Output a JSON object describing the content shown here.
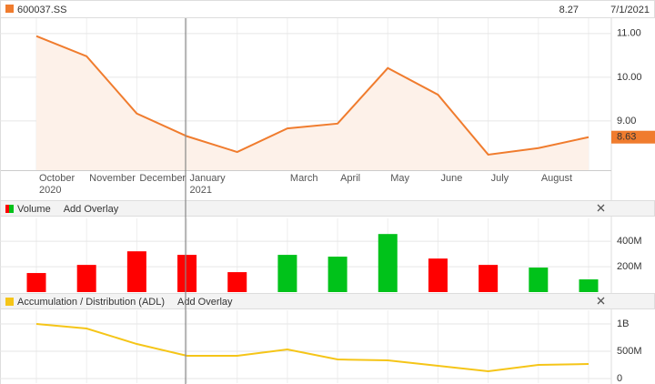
{
  "header": {
    "symbol": "600037.SS",
    "price": 8.27,
    "date": "7/1/2021"
  },
  "chart_data": [
    {
      "type": "area",
      "color": "#f07c2e",
      "fill": "#fdf1e9",
      "categories": [
        "October 2020",
        "November",
        "December",
        "January 2021",
        null,
        "March",
        "April",
        "May",
        "June",
        "July",
        "August",
        null
      ],
      "values": [
        10.94,
        10.48,
        9.17,
        8.65,
        8.29,
        8.83,
        8.94,
        10.21,
        9.6,
        8.23,
        8.38,
        8.63
      ],
      "value_labels": [
        null,
        null,
        null,
        null,
        null,
        null,
        null,
        null,
        null,
        null,
        null,
        "8.63"
      ],
      "ylim": [
        7.875,
        11.35
      ],
      "yticks": [
        {
          "value": 9,
          "label": "9.00"
        },
        {
          "value": 10,
          "label": "10.00"
        },
        {
          "value": 11,
          "label": "11.00"
        }
      ],
      "grid": true
    },
    {
      "type": "bar",
      "title": "Volume",
      "overlay": "Add Overlay",
      "values": [
        150000000,
        214000000,
        321000000,
        293000000,
        157000000,
        293000000,
        279000000,
        457000000,
        264000000,
        214000000,
        193000000,
        100000000
      ],
      "colors": [
        "#ff0000",
        "#ff0000",
        "#ff0000",
        "#ff0000",
        "#ff0000",
        "#00c21a",
        "#00c21a",
        "#00c21a",
        "#ff0000",
        "#ff0000",
        "#00c21a",
        "#00c21a"
      ],
      "ylim": [
        0,
        580000000
      ],
      "yticks": [
        {
          "value": 200000000,
          "label": "200M"
        },
        {
          "value": 400000000,
          "label": "400M"
        }
      ],
      "grid": true
    },
    {
      "type": "line",
      "title": "Accumulation / Distribution (ADL)",
      "overlay": "Add Overlay",
      "color": "#f5c518",
      "values": [
        1000000000,
        917000000,
        633000000,
        417000000,
        417000000,
        533000000,
        350000000,
        333000000,
        233000000,
        133000000,
        250000000,
        267000000
      ],
      "ylim": [
        -83000000,
        1250000000
      ],
      "yticks": [
        0,
        {
          "value": 500000000,
          "label": "500M"
        },
        {
          "value": 1000000000,
          "label": "1B"
        }
      ],
      "grid": true
    }
  ]
}
